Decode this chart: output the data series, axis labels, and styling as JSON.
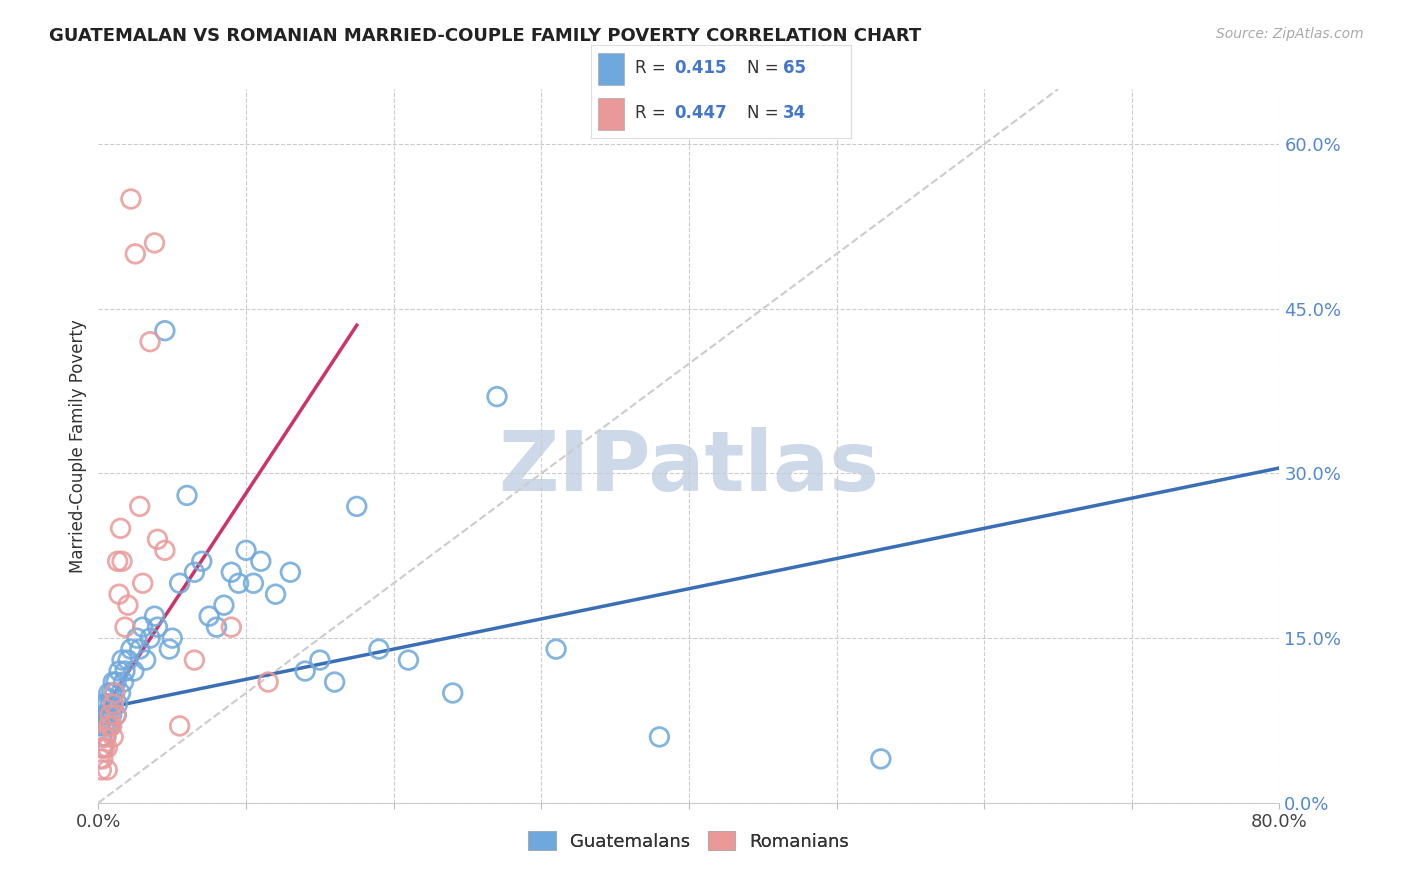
{
  "title": "GUATEMALAN VS ROMANIAN MARRIED-COUPLE FAMILY POVERTY CORRELATION CHART",
  "source": "Source: ZipAtlas.com",
  "ylabel": "Married-Couple Family Poverty",
  "xlim": [
    0,
    0.8
  ],
  "ylim": [
    0,
    0.65
  ],
  "guatemalan_color": "#6fa8dc",
  "romanian_color": "#ea9999",
  "trendline_blue": "#3a6eb5",
  "trendline_pink": "#cc3366",
  "trendline_diag_color": "#cccccc",
  "ytick_vals": [
    0.0,
    0.15,
    0.3,
    0.45,
    0.6
  ],
  "ytick_labels": [
    "0.0%",
    "15.0%",
    "30.0%",
    "45.0%",
    "60.0%"
  ],
  "xtick_minor": [
    0.1,
    0.2,
    0.3,
    0.4,
    0.5,
    0.6,
    0.7,
    0.8
  ],
  "watermark": "ZIPatlas",
  "watermark_color": "#cdd9e8",
  "legend_R_guat": "0.415",
  "legend_N_guat": "65",
  "legend_R_rom": "0.447",
  "legend_N_rom": "34",
  "guat_trendline_x": [
    0.0,
    0.8
  ],
  "guat_trendline_y": [
    0.085,
    0.305
  ],
  "rom_trendline_x": [
    0.0,
    0.175
  ],
  "rom_trendline_y": [
    0.078,
    0.435
  ],
  "guatemalan_x": [
    0.001,
    0.002,
    0.003,
    0.003,
    0.004,
    0.004,
    0.005,
    0.005,
    0.006,
    0.006,
    0.007,
    0.007,
    0.008,
    0.008,
    0.009,
    0.009,
    0.01,
    0.01,
    0.011,
    0.012,
    0.012,
    0.013,
    0.014,
    0.015,
    0.016,
    0.017,
    0.018,
    0.02,
    0.022,
    0.024,
    0.026,
    0.028,
    0.03,
    0.032,
    0.035,
    0.038,
    0.04,
    0.045,
    0.048,
    0.05,
    0.055,
    0.06,
    0.065,
    0.07,
    0.075,
    0.08,
    0.085,
    0.09,
    0.095,
    0.1,
    0.105,
    0.11,
    0.12,
    0.13,
    0.14,
    0.15,
    0.16,
    0.175,
    0.19,
    0.21,
    0.24,
    0.27,
    0.31,
    0.38,
    0.53
  ],
  "guatemalan_y": [
    0.07,
    0.06,
    0.08,
    0.05,
    0.09,
    0.07,
    0.08,
    0.06,
    0.07,
    0.09,
    0.08,
    0.1,
    0.09,
    0.07,
    0.08,
    0.1,
    0.11,
    0.09,
    0.1,
    0.08,
    0.11,
    0.09,
    0.12,
    0.1,
    0.13,
    0.11,
    0.12,
    0.13,
    0.14,
    0.12,
    0.15,
    0.14,
    0.16,
    0.13,
    0.15,
    0.17,
    0.16,
    0.43,
    0.14,
    0.15,
    0.2,
    0.28,
    0.21,
    0.22,
    0.17,
    0.16,
    0.18,
    0.21,
    0.2,
    0.23,
    0.2,
    0.22,
    0.19,
    0.21,
    0.12,
    0.13,
    0.11,
    0.27,
    0.14,
    0.13,
    0.1,
    0.37,
    0.14,
    0.06,
    0.04
  ],
  "romanian_x": [
    0.001,
    0.002,
    0.002,
    0.003,
    0.004,
    0.004,
    0.005,
    0.006,
    0.006,
    0.007,
    0.008,
    0.009,
    0.01,
    0.01,
    0.011,
    0.012,
    0.013,
    0.014,
    0.015,
    0.016,
    0.018,
    0.02,
    0.022,
    0.025,
    0.028,
    0.03,
    0.035,
    0.038,
    0.04,
    0.045,
    0.055,
    0.065,
    0.09,
    0.115
  ],
  "romanian_y": [
    0.04,
    0.03,
    0.05,
    0.04,
    0.06,
    0.05,
    0.06,
    0.05,
    0.03,
    0.07,
    0.08,
    0.07,
    0.09,
    0.06,
    0.1,
    0.08,
    0.22,
    0.19,
    0.25,
    0.22,
    0.16,
    0.18,
    0.55,
    0.5,
    0.27,
    0.2,
    0.42,
    0.51,
    0.24,
    0.23,
    0.07,
    0.13,
    0.16,
    0.11
  ]
}
